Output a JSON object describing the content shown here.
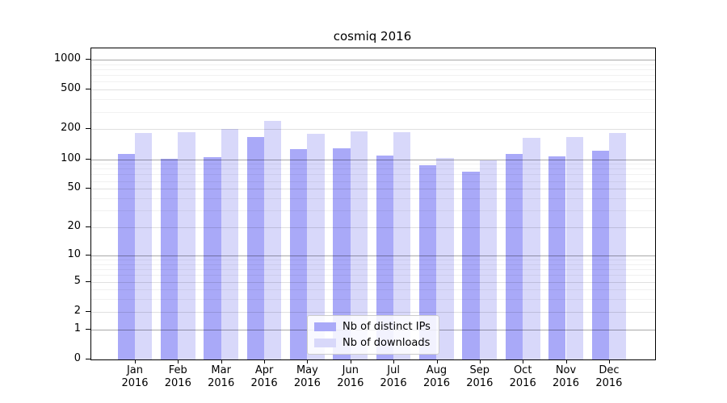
{
  "title": "cosmiq 2016",
  "colors": {
    "distinct_ips": "#a9a9f8",
    "downloads": "#d8d8fa",
    "axis": "#000000",
    "legend_border": "#cccccc"
  },
  "legend": {
    "items": [
      {
        "label": "Nb of distinct IPs",
        "color_key": "distinct_ips"
      },
      {
        "label": "Nb of downloads",
        "color_key": "downloads"
      }
    ],
    "position": "lower center"
  },
  "chart_data": {
    "type": "bar",
    "title": "cosmiq 2016",
    "categories": [
      "Jan 2016",
      "Feb 2016",
      "Mar 2016",
      "Apr 2016",
      "May 2016",
      "Jun 2016",
      "Jul 2016",
      "Aug 2016",
      "Sep 2016",
      "Oct 2016",
      "Nov 2016",
      "Dec 2016"
    ],
    "series": [
      {
        "name": "Nb of distinct IPs",
        "color": "#a9a9f8",
        "values": [
          112,
          101,
          105,
          166,
          127,
          128,
          109,
          87,
          75,
          112,
          107,
          121
        ]
      },
      {
        "name": "Nb of downloads",
        "color": "#d8d8fa",
        "values": [
          185,
          188,
          203,
          242,
          182,
          190,
          187,
          102,
          97,
          164,
          166,
          183
        ]
      }
    ],
    "xlabel": "",
    "ylabel": "",
    "yscale": "log1p",
    "ylim": [
      0,
      1300
    ],
    "y_tick_labels": [
      0,
      1,
      2,
      5,
      10,
      20,
      50,
      100,
      200,
      500,
      1000
    ],
    "grid": true,
    "legend_position": "lower center"
  }
}
